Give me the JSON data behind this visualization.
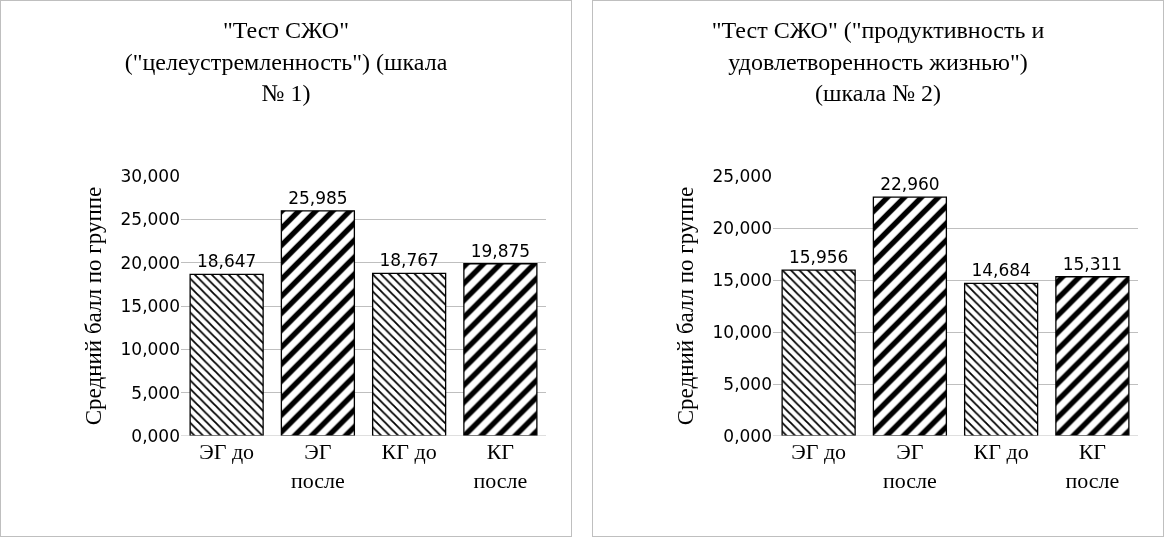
{
  "chart_data": [
    {
      "type": "bar",
      "title": "\"Тест СЖО\" (\"целеустремленность\") (шкала № 1)",
      "ylabel": "Средний балл по группе",
      "categories": [
        "ЭГ до",
        "ЭГ после",
        "КГ до",
        "КГ после"
      ],
      "values": [
        18.647,
        25.985,
        18.767,
        19.875
      ],
      "value_labels": [
        "18,647",
        "25,985",
        "18,767",
        "19,875"
      ],
      "colors": [
        "#000000",
        "#000000",
        "#000000",
        "#000000"
      ],
      "ylim": [
        0,
        30
      ],
      "yticks": [
        {
          "value": 0,
          "label": "0,000"
        },
        {
          "value": 5,
          "label": "5,000"
        },
        {
          "value": 10,
          "label": "10,000"
        },
        {
          "value": 15,
          "label": "15,000"
        },
        {
          "value": 20,
          "label": "20,000"
        },
        {
          "value": 25,
          "label": "25,000"
        },
        {
          "value": 30,
          "label": "30,000"
        }
      ],
      "grid": "y"
    },
    {
      "type": "bar",
      "title": "\"Тест СЖО\" (\"продуктивность и удовлетворенность жизнью\") (шкала № 2)",
      "ylabel": "Средний балл по группе",
      "categories": [
        "ЭГ до",
        "ЭГ после",
        "КГ до",
        "КГ после"
      ],
      "values": [
        15.956,
        22.96,
        14.684,
        15.311
      ],
      "value_labels": [
        "15,956",
        "22,960",
        "14,684",
        "15,311"
      ],
      "colors": [
        "#000000",
        "#000000",
        "#000000",
        "#000000"
      ],
      "ylim": [
        0,
        25
      ],
      "yticks": [
        {
          "value": 0,
          "label": "0,000"
        },
        {
          "value": 5,
          "label": "5,000"
        },
        {
          "value": 10,
          "label": "10,000"
        },
        {
          "value": 15,
          "label": "15,000"
        },
        {
          "value": 20,
          "label": "20,000"
        },
        {
          "value": 25,
          "label": "25,000"
        }
      ],
      "grid": "y"
    }
  ]
}
